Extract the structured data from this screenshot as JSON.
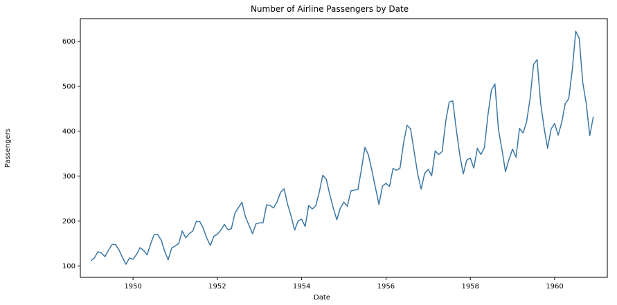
{
  "chart_data": {
    "type": "line",
    "title": "Number of Airline Passengers by Date",
    "xlabel": "Date",
    "ylabel": "Passengers",
    "xlim": [
      "1948-10-01",
      "1961-03-31"
    ],
    "ylim": [
      75,
      650
    ],
    "x_ticks": [
      "1950",
      "1952",
      "1954",
      "1956",
      "1958",
      "1960"
    ],
    "y_ticks": [
      100,
      200,
      300,
      400,
      500,
      600
    ],
    "grid": false,
    "legend": "none",
    "colors": {
      "line": "#3a76a4",
      "axis": "#000000",
      "background": "#ffffff"
    },
    "series": [
      {
        "x": [
          "1949-01",
          "1949-02",
          "1949-03",
          "1949-04",
          "1949-05",
          "1949-06",
          "1949-07",
          "1949-08",
          "1949-09",
          "1949-10",
          "1949-11",
          "1949-12",
          "1950-01",
          "1950-02",
          "1950-03",
          "1950-04",
          "1950-05",
          "1950-06",
          "1950-07",
          "1950-08",
          "1950-09",
          "1950-10",
          "1950-11",
          "1950-12",
          "1951-01",
          "1951-02",
          "1951-03",
          "1951-04",
          "1951-05",
          "1951-06",
          "1951-07",
          "1951-08",
          "1951-09",
          "1951-10",
          "1951-11",
          "1951-12",
          "1952-01",
          "1952-02",
          "1952-03",
          "1952-04",
          "1952-05",
          "1952-06",
          "1952-07",
          "1952-08",
          "1952-09",
          "1952-10",
          "1952-11",
          "1952-12",
          "1953-01",
          "1953-02",
          "1953-03",
          "1953-04",
          "1953-05",
          "1953-06",
          "1953-07",
          "1953-08",
          "1953-09",
          "1953-10",
          "1953-11",
          "1953-12",
          "1954-01",
          "1954-02",
          "1954-03",
          "1954-04",
          "1954-05",
          "1954-06",
          "1954-07",
          "1954-08",
          "1954-09",
          "1954-10",
          "1954-11",
          "1954-12",
          "1955-01",
          "1955-02",
          "1955-03",
          "1955-04",
          "1955-05",
          "1955-06",
          "1955-07",
          "1955-08",
          "1955-09",
          "1955-10",
          "1955-11",
          "1955-12",
          "1956-01",
          "1956-02",
          "1956-03",
          "1956-04",
          "1956-05",
          "1956-06",
          "1956-07",
          "1956-08",
          "1956-09",
          "1956-10",
          "1956-11",
          "1956-12",
          "1957-01",
          "1957-02",
          "1957-03",
          "1957-04",
          "1957-05",
          "1957-06",
          "1957-07",
          "1957-08",
          "1957-09",
          "1957-10",
          "1957-11",
          "1957-12",
          "1958-01",
          "1958-02",
          "1958-03",
          "1958-04",
          "1958-05",
          "1958-06",
          "1958-07",
          "1958-08",
          "1958-09",
          "1958-10",
          "1958-11",
          "1958-12",
          "1959-01",
          "1959-02",
          "1959-03",
          "1959-04",
          "1959-05",
          "1959-06",
          "1959-07",
          "1959-08",
          "1959-09",
          "1959-10",
          "1959-11",
          "1959-12",
          "1960-01",
          "1960-02",
          "1960-03",
          "1960-04",
          "1960-05",
          "1960-06",
          "1960-07",
          "1960-08",
          "1960-09",
          "1960-10",
          "1960-11",
          "1960-12"
        ],
        "values": [
          112,
          118,
          132,
          129,
          121,
          135,
          148,
          148,
          136,
          119,
          104,
          118,
          115,
          126,
          141,
          135,
          125,
          149,
          170,
          170,
          158,
          133,
          114,
          140,
          145,
          150,
          178,
          163,
          172,
          178,
          199,
          199,
          184,
          162,
          146,
          166,
          171,
          180,
          193,
          181,
          183,
          218,
          230,
          242,
          209,
          191,
          172,
          194,
          196,
          196,
          236,
          235,
          229,
          243,
          264,
          272,
          237,
          211,
          180,
          201,
          204,
          188,
          235,
          227,
          234,
          264,
          302,
          293,
          259,
          229,
          203,
          229,
          242,
          233,
          267,
          269,
          270,
          315,
          364,
          347,
          312,
          274,
          237,
          278,
          284,
          277,
          317,
          313,
          318,
          374,
          413,
          405,
          355,
          306,
          271,
          306,
          315,
          301,
          356,
          348,
          355,
          422,
          465,
          467,
          404,
          347,
          305,
          336,
          340,
          318,
          362,
          348,
          363,
          435,
          491,
          505,
          404,
          359,
          310,
          337,
          360,
          342,
          406,
          396,
          420,
          472,
          548,
          559,
          463,
          407,
          362,
          405,
          417,
          391,
          419,
          461,
          472,
          535,
          622,
          606,
          508,
          461,
          390,
          432
        ]
      }
    ]
  }
}
